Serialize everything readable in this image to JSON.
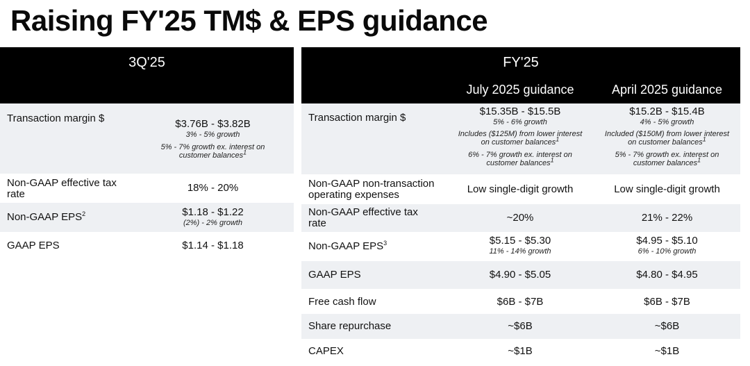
{
  "title": "Raising FY'25 TM$ & EPS guidance",
  "q3": {
    "header": "3Q'25",
    "rows": [
      {
        "label": "Transaction margin $",
        "value": "$3.76B - $3.82B",
        "sub1": "3% - 5% growth",
        "sub2": "5% - 7% growth ex. interest on",
        "sub3": "customer balances",
        "sup3": "1"
      },
      {
        "label_line1": "Non-GAAP effective tax",
        "label_line2": "rate",
        "value": "18% - 20%"
      },
      {
        "label": "Non-GAAP EPS",
        "label_sup": "2",
        "value": "$1.18 - $1.22",
        "sub1": "(2%) - 2% growth"
      },
      {
        "label": "GAAP EPS",
        "value": "$1.14 - $1.18"
      }
    ]
  },
  "fy": {
    "header": "FY'25",
    "col1": "July 2025 guidance",
    "col2": "April 2025 guidance",
    "rows": [
      {
        "label": "Transaction margin $",
        "c1": {
          "value": "$15.35B - $15.5B",
          "sub": "5% - 6% growth",
          "n1": "Includes ($125M) from lower interest",
          "n2": "on customer balances",
          "n2sup": "1",
          "n3": "6% - 7% growth ex. interest on",
          "n4": "customer balances",
          "n4sup": "1"
        },
        "c2": {
          "value": "$15.2B - $15.4B",
          "sub": "4% - 5% growth",
          "n1": "Included ($150M) from lower interest",
          "n2": "on customer balances",
          "n2sup": "1",
          "n3": "5% - 7% growth ex. interest on",
          "n4": "customer balances",
          "n4sup": "1"
        }
      },
      {
        "label_line1": "Non-GAAP non-transaction",
        "label_line2": "operating expenses",
        "c1": "Low single-digit growth",
        "c2": "Low single-digit growth"
      },
      {
        "label_line1": "Non-GAAP effective tax",
        "label_line2": "rate",
        "c1": "~20%",
        "c2": "21% - 22%"
      },
      {
        "label": "Non-GAAP EPS",
        "label_sup": "3",
        "c1": "$5.15 - $5.30",
        "c1sub": "11% - 14% growth",
        "c2": "$4.95 - $5.10",
        "c2sub": "6% - 10% growth"
      },
      {
        "label": "GAAP EPS",
        "c1": "$4.90 - $5.05",
        "c2": "$4.80 - $4.95"
      },
      {
        "label": "Free cash flow",
        "c1": "$6B - $7B",
        "c2": "$6B - $7B"
      },
      {
        "label": "Share repurchase",
        "c1": "~$6B",
        "c2": "~$6B"
      },
      {
        "label": "CAPEX",
        "c1": "~$1B",
        "c2": "~$1B"
      }
    ]
  },
  "colors": {
    "header_bg": "#000000",
    "header_text": "#ffffff",
    "row_shade": "#eef0f3"
  }
}
